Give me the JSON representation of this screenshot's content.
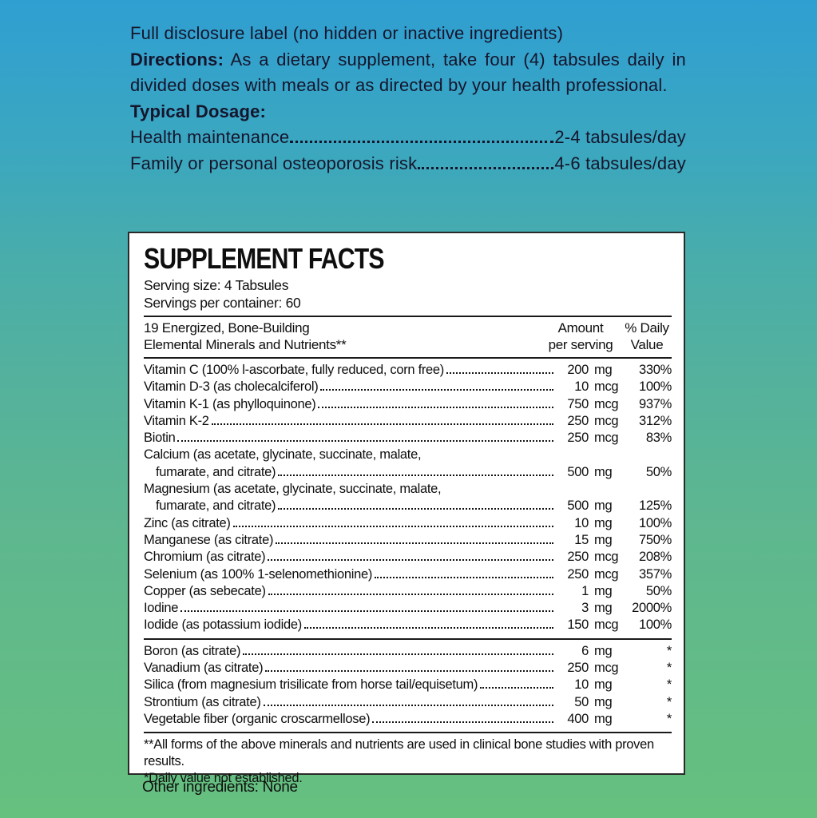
{
  "background": {
    "gradient_top": "#2f9fd2",
    "gradient_bottom": "#66c07e",
    "panel_background": "#ffffff",
    "text_color": "#15152c"
  },
  "header": {
    "full_disclosure": "Full disclosure label (no hidden or inactive ingredients)",
    "directions_label": "Directions:",
    "directions_text": " As a dietary supplement, take four (4) tabsules daily in divided doses with meals or as directed by your health professional.",
    "typical_dosage_label": "Typical Dosage:",
    "dosage": [
      {
        "name": "Health maintenance",
        "value": "2-4 tabsules/day"
      },
      {
        "name": "Family or personal osteoporosis risk",
        "value": "4-6 tabsules/day"
      }
    ]
  },
  "panel": {
    "title": "SUPPLEMENT FACTS",
    "serving_size": "Serving size:  4 Tabsules",
    "servings_per_container": "Servings per container: 60",
    "col_header_left_line1": "19 Energized, Bone-Building",
    "col_header_left_line2": "Elemental Minerals and Nutrients**",
    "col_header_amount_line1": "Amount",
    "col_header_amount_line2": "per serving",
    "col_header_dv_line1": "% Daily",
    "col_header_dv_line2": "Value",
    "main_rows": [
      {
        "name": "Vitamin C (100% l-ascorbate, fully reduced, corn free)",
        "amount": "200",
        "unit": "mg",
        "dv": "330%"
      },
      {
        "name": "Vitamin D-3 (as cholecalciferol)",
        "amount": "10",
        "unit": "mcg",
        "dv": "100%"
      },
      {
        "name": "Vitamin K-1 (as phylloquinone)",
        "amount": "750",
        "unit": "mcg",
        "dv": "937%"
      },
      {
        "name": "Vitamin K-2",
        "amount": "250",
        "unit": "mcg",
        "dv": "312%"
      },
      {
        "name": "Biotin",
        "amount": "250",
        "unit": "mcg",
        "dv": "83%"
      },
      {
        "name": "Calcium (as acetate, glycinate, succinate, malate,",
        "name2": "fumarate, and citrate)",
        "amount": "500",
        "unit": "mg",
        "dv": "50%"
      },
      {
        "name": "Magnesium (as acetate, glycinate, succinate, malate,",
        "name2": "fumarate, and citrate)",
        "amount": "500",
        "unit": "mg",
        "dv": "125%"
      },
      {
        "name": "Zinc (as citrate)",
        "amount": "10",
        "unit": "mg",
        "dv": "100%"
      },
      {
        "name": "Manganese (as citrate)",
        "amount": "15",
        "unit": "mg",
        "dv": "750%"
      },
      {
        "name": "Chromium (as citrate)",
        "amount": "250",
        "unit": "mcg",
        "dv": "208%"
      },
      {
        "name": "Selenium (as 100% 1-selenomethionine)",
        "amount": "250",
        "unit": "mcg",
        "dv": "357%"
      },
      {
        "name": "Copper (as sebecate)",
        "amount": "1",
        "unit": "mg",
        "dv": "50%"
      },
      {
        "name": "Iodine",
        "amount": "3",
        "unit": "mg",
        "dv": "2000%"
      },
      {
        "name": "Iodide (as potassium iodide)",
        "amount": "150",
        "unit": "mcg",
        "dv": "100%"
      }
    ],
    "starred_rows": [
      {
        "name": "Boron (as citrate)",
        "amount": "6",
        "unit": "mg",
        "dv": "*"
      },
      {
        "name": "Vanadium (as citrate)",
        "amount": "250",
        "unit": "mcg",
        "dv": "*"
      },
      {
        "name": "Silica (from magnesium trisilicate from horse tail/equisetum)",
        "amount": "10",
        "unit": "mg",
        "dv": "*"
      },
      {
        "name": "Strontium (as citrate)",
        "amount": "50",
        "unit": "mg",
        "dv": "*"
      },
      {
        "name": "Vegetable fiber (organic croscarmellose)",
        "amount": "400",
        "unit": "mg",
        "dv": "*"
      }
    ],
    "footnotes": [
      "**All forms of the above minerals and nutrients are used in clinical bone studies with proven results.",
      "*Daily value not established."
    ]
  },
  "footer": {
    "other_ingredients": "Other ingredients: None"
  }
}
